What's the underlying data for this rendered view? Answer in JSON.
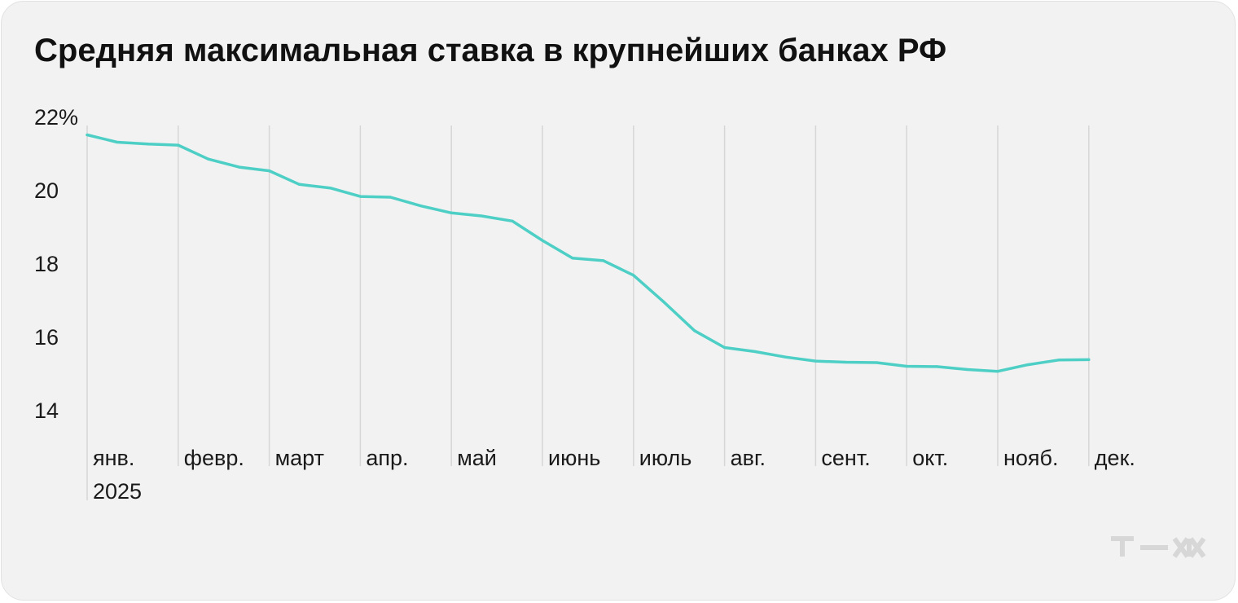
{
  "title": "Средняя максимальная ставка в крупнейших банках РФ",
  "colors": {
    "line": "#4ecfc6",
    "grid": "#d6d6d6",
    "background": "#f2f2f2",
    "logo": "#d7d7d7"
  },
  "logo": {
    "icon": "tzh-logo-icon"
  },
  "chart_data": {
    "type": "line",
    "title": "Средняя максимальная ставка в крупнейших банках РФ",
    "xlabel": "",
    "ylabel": "",
    "ylim": [
      13.4,
      22.2
    ],
    "grid": "vertical-month-lines",
    "y_ticks": [
      {
        "value": 22,
        "label": "22%"
      },
      {
        "value": 20,
        "label": "20"
      },
      {
        "value": 18,
        "label": "18"
      },
      {
        "value": 16,
        "label": "16"
      },
      {
        "value": 14,
        "label": "14"
      }
    ],
    "months": [
      "янв.",
      "февр.",
      "март",
      "апр.",
      "май",
      "июнь",
      "июль",
      "авг.",
      "сент.",
      "окт.",
      "нояб.",
      "дек."
    ],
    "year_label": "2025",
    "x_unit": "month index (0 = early January 2025)",
    "series": [
      {
        "x": [
          0.0,
          0.33,
          0.67,
          1.0,
          1.33,
          1.67,
          2.0,
          2.33,
          2.67,
          3.0,
          3.33,
          3.67,
          4.0,
          4.33,
          4.67,
          5.0,
          5.33,
          5.67,
          6.0,
          6.33,
          6.67,
          7.0,
          7.33,
          7.67,
          8.0,
          8.33,
          8.67,
          9.0,
          9.33,
          9.67,
          10.0,
          10.33,
          10.67,
          11.0
        ],
        "values": [
          21.5,
          21.3,
          21.25,
          21.22,
          20.84,
          20.62,
          20.52,
          20.15,
          20.05,
          19.82,
          19.8,
          19.56,
          19.37,
          19.29,
          19.15,
          18.62,
          18.14,
          18.07,
          17.67,
          16.95,
          16.16,
          15.7,
          15.59,
          15.44,
          15.33,
          15.3,
          15.29,
          15.19,
          15.18,
          15.1,
          15.05,
          15.23,
          15.36,
          15.37
        ]
      }
    ]
  }
}
